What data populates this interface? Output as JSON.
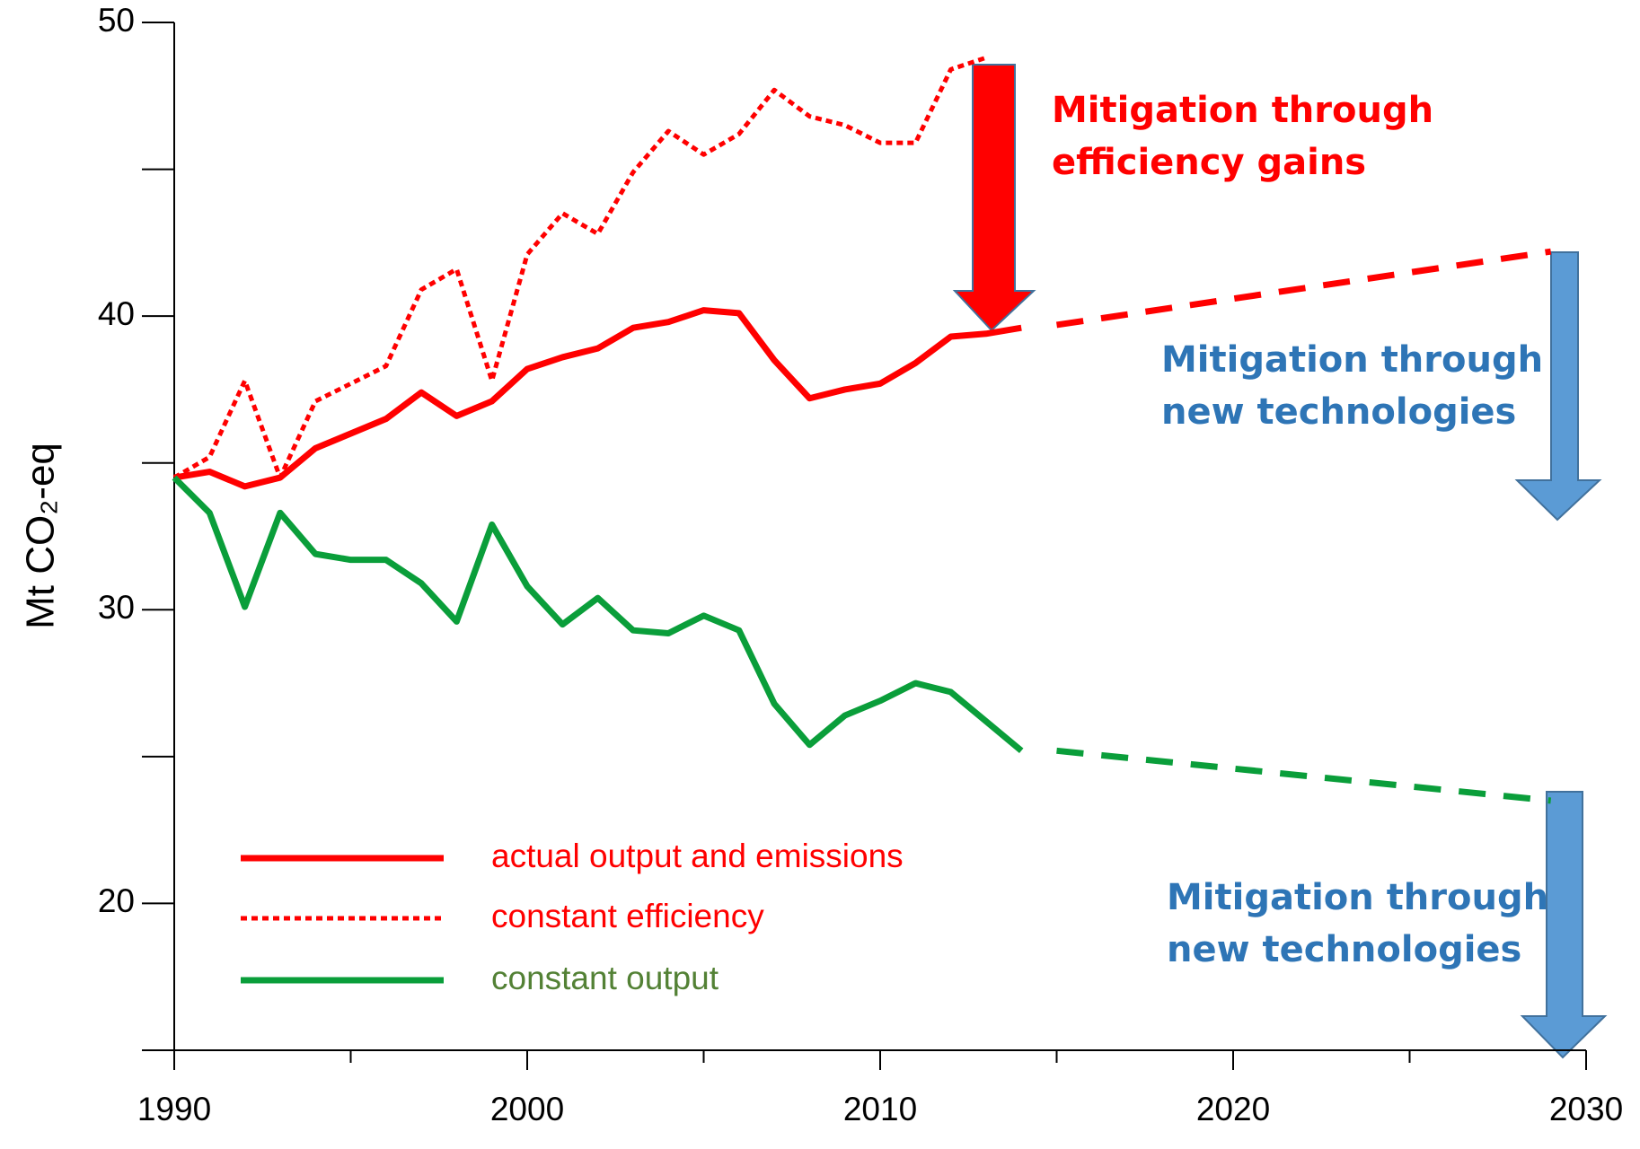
{
  "chart_data": {
    "type": "line",
    "ylabel": "Mt CO₂-eq",
    "xlim": [
      1990,
      2030
    ],
    "xticks": [
      1990,
      2000,
      2010,
      2020,
      2030
    ],
    "xminor": [
      1995,
      2005,
      2015,
      2025
    ],
    "ylim": [
      15,
      50
    ],
    "yticks": [
      20,
      30,
      40,
      50
    ],
    "yminor": [
      15,
      25,
      35,
      45
    ],
    "series": [
      {
        "name": "actual output and emissions",
        "color": "#ff0000",
        "label_color": "#ff0000",
        "style": "solid",
        "x": [
          1990,
          1991,
          1992,
          1993,
          1994,
          1995,
          1996,
          1997,
          1998,
          1999,
          2000,
          2001,
          2002,
          2003,
          2004,
          2005,
          2006,
          2007,
          2008,
          2009,
          2010,
          2011,
          2012,
          2013,
          2014
        ],
        "values": [
          34.5,
          34.7,
          34.2,
          34.5,
          35.5,
          36.0,
          36.5,
          37.4,
          36.6,
          37.1,
          38.2,
          38.6,
          38.9,
          39.6,
          39.8,
          40.2,
          40.1,
          38.5,
          37.2,
          37.5,
          37.7,
          38.4,
          39.3,
          39.4,
          39.6
        ]
      },
      {
        "name": "constant efficiency",
        "color": "#ff0000",
        "label_color": "#ff0000",
        "style": "dotted",
        "x": [
          1990,
          1991,
          1992,
          1993,
          1994,
          1995,
          1996,
          1997,
          1998,
          1999,
          2000,
          2001,
          2002,
          2003,
          2004,
          2005,
          2006,
          2007,
          2008,
          2009,
          2010,
          2011,
          2012,
          2013
        ],
        "values": [
          34.5,
          35.2,
          37.8,
          34.5,
          37.1,
          37.7,
          38.3,
          40.9,
          41.6,
          37.8,
          42.1,
          43.5,
          42.8,
          44.9,
          46.3,
          45.5,
          46.2,
          47.7,
          46.8,
          46.5,
          45.9,
          45.9,
          48.4,
          48.8
        ]
      },
      {
        "name": "constant output",
        "color": "#0a9e3a",
        "label_color": "#538135",
        "style": "solid",
        "x": [
          1990,
          1991,
          1992,
          1993,
          1994,
          1995,
          1996,
          1997,
          1998,
          1999,
          2000,
          2001,
          2002,
          2003,
          2004,
          2005,
          2006,
          2007,
          2008,
          2009,
          2010,
          2011,
          2012,
          2013,
          2014
        ],
        "values": [
          34.5,
          33.3,
          30.1,
          33.3,
          31.9,
          31.7,
          31.7,
          30.9,
          29.6,
          32.9,
          30.8,
          29.5,
          30.4,
          29.3,
          29.2,
          29.8,
          29.3,
          26.8,
          25.4,
          26.4,
          26.9,
          27.5,
          27.2,
          26.2,
          25.2
        ]
      }
    ],
    "projections": [
      {
        "color": "#ff0000",
        "style": "dashed",
        "x": [
          2015,
          2029
        ],
        "values": [
          39.7,
          42.2
        ]
      },
      {
        "color": "#0a9e3a",
        "style": "dashed",
        "x": [
          2015,
          2029
        ],
        "values": [
          25.2,
          23.5
        ]
      }
    ],
    "annotations": [
      {
        "lines": [
          "Mitigation through",
          "efficiency gains"
        ],
        "color": "#ff0000"
      },
      {
        "lines": [
          "Mitigation through",
          "new technologies"
        ],
        "color": "#2e75b6"
      },
      {
        "lines": [
          "Mitigation through",
          "new technologies"
        ],
        "color": "#2e75b6"
      }
    ]
  }
}
